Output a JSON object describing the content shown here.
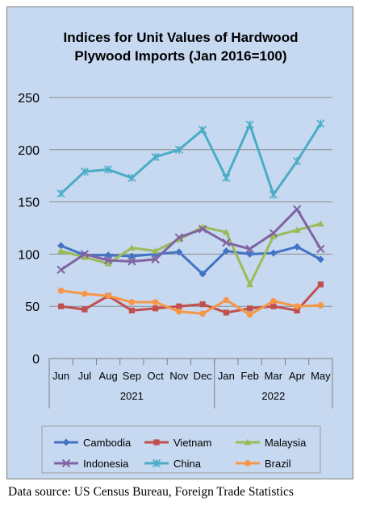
{
  "chart_data": {
    "type": "line",
    "title_lines": [
      "Indices for Unit Values of Hardwood",
      "Plywood Imports (Jan 2016=100)"
    ],
    "categories": [
      "Jun",
      "Jul",
      "Aug",
      "Sep",
      "Oct",
      "Nov",
      "Dec",
      "Jan",
      "Feb",
      "Mar",
      "Apr",
      "May"
    ],
    "year_groups": [
      {
        "label": "2021",
        "start": 0,
        "end": 6
      },
      {
        "label": "2022",
        "start": 7,
        "end": 11
      }
    ],
    "ylim": [
      0,
      250
    ],
    "yticks": [
      "0",
      "50",
      "100",
      "150",
      "200",
      "250"
    ],
    "grid": true,
    "legend_position": "bottom",
    "series": [
      {
        "name": "Cambodia",
        "color": "#4472c4",
        "marker": "diamond",
        "values": [
          108,
          99,
          99,
          98,
          100,
          102,
          81,
          103,
          100,
          101,
          107,
          95
        ]
      },
      {
        "name": "Vietnam",
        "color": "#c0504d",
        "marker": "square",
        "values": [
          50,
          47,
          60,
          46,
          48,
          50,
          52,
          44,
          48,
          50,
          46,
          71
        ]
      },
      {
        "name": "Malaysia",
        "color": "#9bbb59",
        "marker": "triangle",
        "values": [
          103,
          97,
          91,
          106,
          103,
          114,
          126,
          121,
          71,
          117,
          123,
          129
        ]
      },
      {
        "name": "Indonesia",
        "color": "#8064a2",
        "marker": "x",
        "values": [
          85,
          100,
          94,
          93,
          95,
          116,
          124,
          111,
          105,
          120,
          143,
          105
        ]
      },
      {
        "name": "China",
        "color": "#4bacc6",
        "marker": "star",
        "values": [
          158,
          179,
          181,
          173,
          193,
          200,
          219,
          173,
          224,
          157,
          189,
          225
        ]
      },
      {
        "name": "Brazil",
        "color": "#f79646",
        "marker": "circle",
        "values": [
          65,
          62,
          60,
          54,
          54,
          45,
          43,
          56,
          42,
          55,
          50,
          51
        ]
      }
    ]
  },
  "source_note": "Data source: US Census Bureau, Foreign Trade Statistics"
}
